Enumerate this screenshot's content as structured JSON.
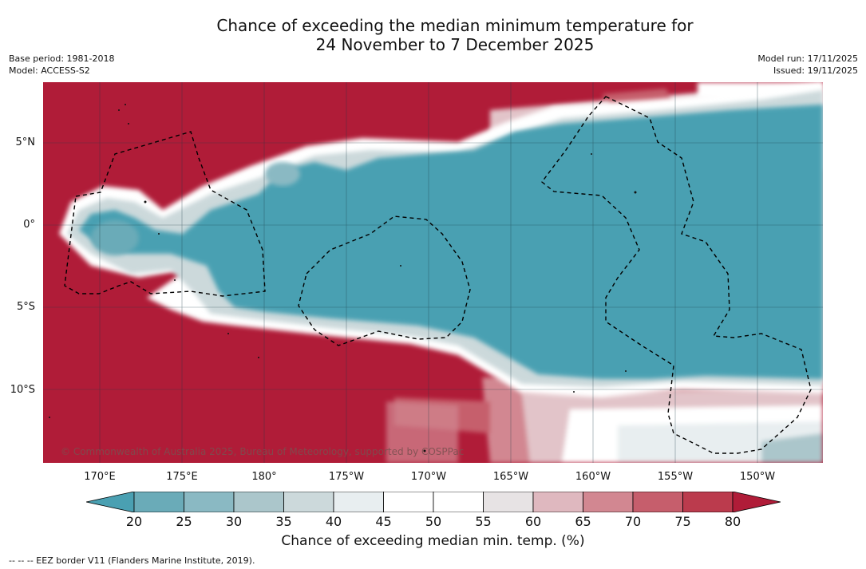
{
  "title": {
    "line1": "Chance of exceeding the median minimum temperature for",
    "line2": "24 November to 7 December 2025"
  },
  "meta": {
    "base_period": "Base period: 1981-2018",
    "model": "Model: ACCESS-S2",
    "model_run": "Model run: 17/11/2025",
    "issued": "Issued: 19/11/2025"
  },
  "map": {
    "lat_labels": [
      "5°N",
      "0°",
      "5°S",
      "10°S"
    ],
    "lon_labels": [
      "170°E",
      "175°E",
      "180°",
      "175°W",
      "170°W",
      "165°W",
      "160°W",
      "155°W",
      "150°W"
    ],
    "copyright": "© Commonwealth of Australia 2025, Bureau of Meteorology, supported by COSPPac"
  },
  "colorbar": {
    "ticks": [
      "20",
      "25",
      "30",
      "35",
      "40",
      "45",
      "50",
      "55",
      "60",
      "65",
      "70",
      "75",
      "80"
    ],
    "label": "Chance of exceeding median min. temp. (%)",
    "colors": [
      "#4aa0b2",
      "#6aabb8",
      "#8ab9c3",
      "#abc6cb",
      "#ccd9db",
      "#e8eef0",
      "#ffffff",
      "#ffffff",
      "#e7e3e4",
      "#dfb8bf",
      "#d28791",
      "#c65e6c",
      "#bb3b4d",
      "#b01c38"
    ],
    "high_color": "#b01c38",
    "low_color": "#4aa0b2"
  },
  "footnote": "--  --  -- EEZ border V11 (Flanders Marine Institute, 2019)."
}
